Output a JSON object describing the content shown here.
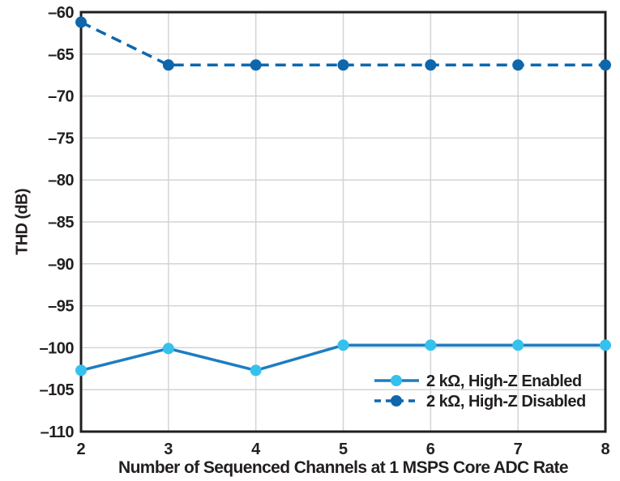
{
  "chart_data": {
    "type": "line",
    "title": "",
    "xlabel": "Number of Sequenced Channels at 1 MSPS Core ADC Rate",
    "ylabel": "THD (dB)",
    "x": [
      2,
      3,
      4,
      5,
      6,
      7,
      8
    ],
    "xlim": [
      2,
      8
    ],
    "ylim": [
      -110,
      -60
    ],
    "x_ticks": [
      2,
      3,
      4,
      5,
      6,
      7,
      8
    ],
    "y_ticks": [
      -60,
      -65,
      -70,
      -75,
      -80,
      -85,
      -90,
      -95,
      -100,
      -105,
      -110
    ],
    "grid": true,
    "legend_position": "inside-lower-right",
    "series": [
      {
        "name": "2 kΩ, High-Z Enabled",
        "style": "solid",
        "line_color": "#1d7dc2",
        "marker_color": "#35c1ee",
        "values": [
          -102.7,
          -100.1,
          -102.7,
          -99.7,
          -99.7,
          -99.7,
          -99.7
        ]
      },
      {
        "name": "2 kΩ, High-Z Disabled",
        "style": "dashed",
        "line_color": "#0e67ac",
        "marker_color": "#0e67ac",
        "values": [
          -61.2,
          -66.3,
          -66.3,
          -66.3,
          -66.3,
          -66.3,
          -66.3
        ]
      }
    ],
    "colors": {
      "frame": "#221e1f",
      "gridline": "#d2d4d6",
      "text": "#231f20"
    }
  }
}
